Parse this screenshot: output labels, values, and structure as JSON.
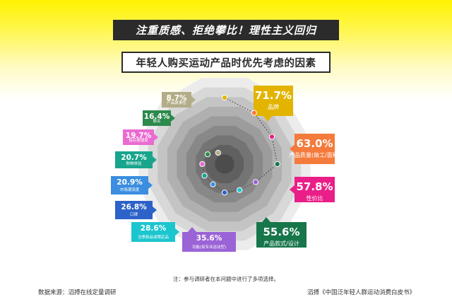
{
  "headline": "注重质感、拒绝攀比！理性主义回归",
  "chart_data": {
    "type": "radial",
    "title": "年轻人购买运动产品时优先考虑的因素",
    "items": [
      {
        "label": "品牌",
        "value": 71.7,
        "display": "71.7%",
        "color": "#e2b400"
      },
      {
        "label": "产品质量(做工/面料)",
        "display": "63.0%",
        "value": 63.0,
        "color": "#f47b3c"
      },
      {
        "label": "性价比",
        "value": 57.8,
        "display": "57.8%",
        "color": "#ea1e88"
      },
      {
        "label": "产品款式/设计",
        "value": 55.6,
        "display": "55.6%",
        "color": "#17764a"
      },
      {
        "label": "功能(如专业运动型)",
        "value": 35.6,
        "display": "35.6%",
        "color": "#9a63d6"
      },
      {
        "label": "当季新品或限定品",
        "value": 28.6,
        "display": "28.6%",
        "color": "#1cc6cf"
      },
      {
        "label": "口碑",
        "value": 26.8,
        "display": "26.8%",
        "color": "#2d63c9"
      },
      {
        "label": "市场潮流度",
        "value": 20.9,
        "display": "20.9%",
        "color": "#3b8ee0"
      },
      {
        "label": "购物体验",
        "value": 20.7,
        "display": "20.7%",
        "color": "#18a58c"
      },
      {
        "label": "售后便捷度",
        "value": 19.7,
        "display": "19.7%",
        "color": "#e96bd1"
      },
      {
        "label": "联名",
        "value": 16.4,
        "display": "16.4%",
        "color": "#2c8a4c"
      },
      {
        "label": "产品故事性",
        "value": 8.7,
        "display": "8.7%",
        "color": "#b2ad86"
      }
    ]
  },
  "footer": {
    "note": "注：参与调研者在本问题中进行了多项选择。",
    "source": "数据来源：滔搏在线定量调研",
    "report": "滔搏《中国泛年轻人群运动消费白皮书》"
  }
}
